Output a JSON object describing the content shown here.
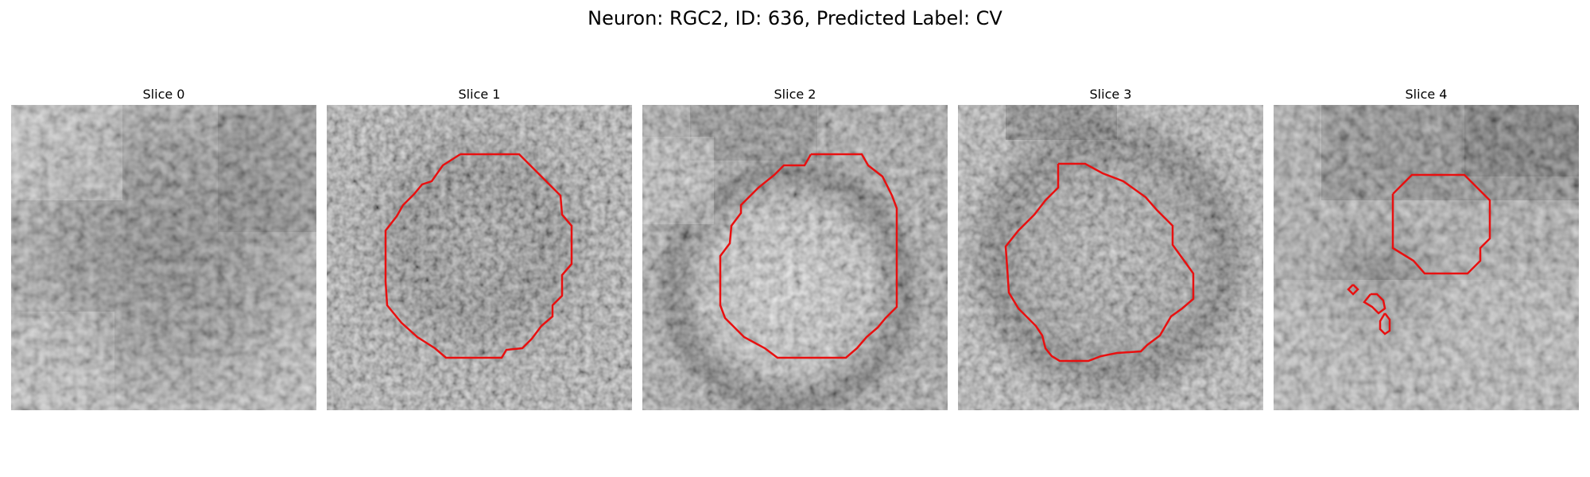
{
  "figure": {
    "title": "Neuron: RGC2, ID: 636, Predicted Label: CV",
    "contour_color": "#e81010"
  },
  "slices": [
    {
      "title": "Slice 0"
    },
    {
      "title": "Slice 1"
    },
    {
      "title": "Slice 2"
    },
    {
      "title": "Slice 3"
    },
    {
      "title": "Slice 4"
    }
  ]
}
